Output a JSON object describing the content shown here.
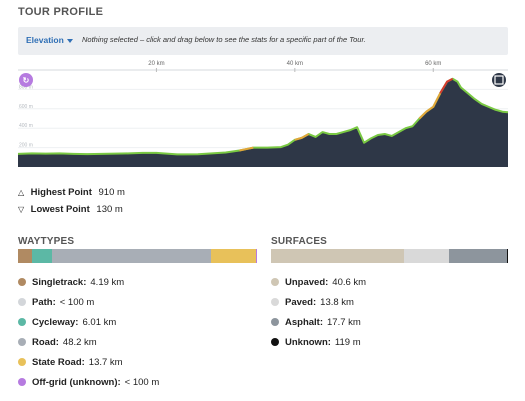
{
  "title": "TOUR PROFILE",
  "hint": {
    "elevation_label": "Elevation",
    "message": "Nothing selected – click and drag below to see the stats for a specific part of the Tour."
  },
  "chart_data": {
    "type": "area",
    "x_unit": "km",
    "x_ticks": [
      "20 km",
      "40 km",
      "60 km"
    ],
    "x_tick_values": [
      20,
      40,
      60
    ],
    "y_ticks": [
      "800 m",
      "600 m",
      "400 m",
      "200 m"
    ],
    "y_tick_values": [
      800,
      600,
      400,
      200
    ],
    "xlim": [
      0,
      70.8
    ],
    "ylim": [
      0,
      1000
    ],
    "x": [
      0,
      2,
      4,
      6,
      8,
      10,
      12,
      14,
      16,
      18,
      20,
      22,
      23,
      24,
      26,
      28,
      30,
      32,
      33,
      34,
      36,
      38,
      39,
      40,
      41,
      42,
      43,
      44,
      45,
      46,
      47,
      48,
      49,
      50,
      51,
      52,
      53,
      54,
      55,
      56,
      57,
      58,
      59,
      60,
      61,
      62,
      62.8,
      63.5,
      64,
      65,
      66,
      67,
      68,
      69,
      70,
      70.8
    ],
    "y": [
      135,
      140,
      138,
      140,
      135,
      133,
      135,
      138,
      140,
      145,
      145,
      135,
      130,
      130,
      132,
      140,
      150,
      170,
      185,
      200,
      200,
      205,
      230,
      280,
      300,
      340,
      310,
      360,
      340,
      340,
      360,
      380,
      410,
      250,
      295,
      330,
      340,
      320,
      360,
      400,
      420,
      500,
      570,
      620,
      760,
      880,
      910,
      880,
      820,
      760,
      700,
      650,
      620,
      590,
      570,
      565
    ],
    "waytype_colors": [
      "#b08a62",
      "#5cb8a5",
      "#a8aeb6",
      "#e8c15a"
    ],
    "icons": [
      "tour-start-icon",
      "tour-finish-icon"
    ]
  },
  "stats": {
    "highest_label": "Highest Point",
    "highest_value": "910 m",
    "lowest_label": "Lowest Point",
    "lowest_value": "130 m"
  },
  "waytypes": {
    "title": "WAYTYPES",
    "bar_fractions": [
      0.0592,
      0.0849,
      0.6808,
      0.1935,
      0.0014
    ],
    "items": [
      {
        "name": "Singletrack:",
        "value": "4.19 km",
        "color": "#b08a62"
      },
      {
        "name": "Path:",
        "value": "< 100 m",
        "color": "#d3d6da"
      },
      {
        "name": "Cycleway:",
        "value": "6.01 km",
        "color": "#5cb8a5"
      },
      {
        "name": "Road:",
        "value": "48.2 km",
        "color": "#a8aeb6"
      },
      {
        "name": "State Road:",
        "value": "13.7 km",
        "color": "#e8c15a"
      },
      {
        "name": "Off-grid (unknown):",
        "value": "< 100 m",
        "color": "#b67be0"
      }
    ]
  },
  "surfaces": {
    "title": "SURFACES",
    "bar_fractions": [
      0.5734,
      0.1949,
      0.25,
      0.0017
    ],
    "items": [
      {
        "name": "Unpaved:",
        "value": "40.6 km",
        "color": "#cfc6b4"
      },
      {
        "name": "Paved:",
        "value": "13.8 km",
        "color": "#d9d9d9"
      },
      {
        "name": "Asphalt:",
        "value": "17.7 km",
        "color": "#8d959d"
      },
      {
        "name": "Unknown:",
        "value": "119 m",
        "color": "#111111"
      }
    ]
  }
}
